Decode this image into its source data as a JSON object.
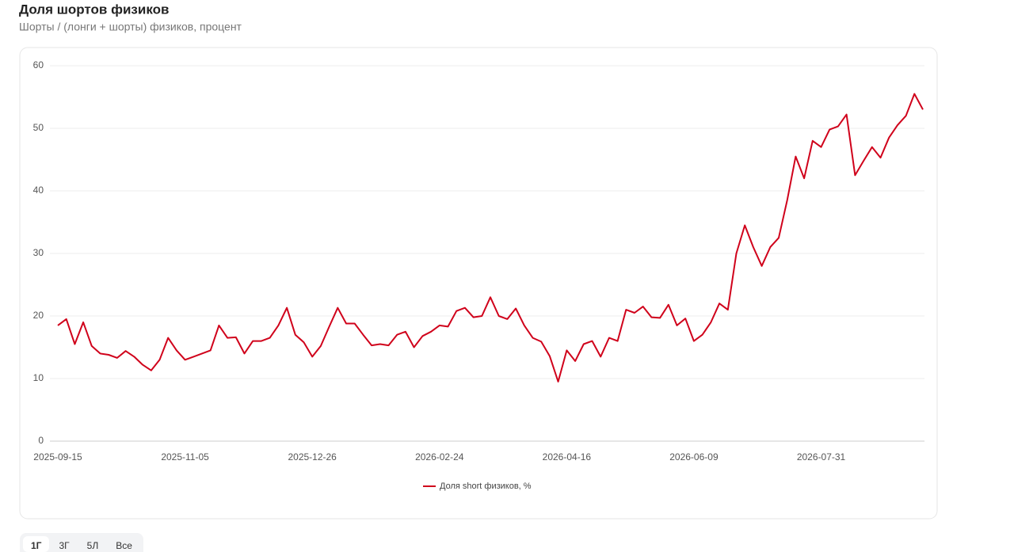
{
  "chart_data": {
    "type": "line",
    "title": "Доля шортов физиков",
    "subtitle": "Шорты / (лонги + шорты) физиков, процент",
    "x": [
      "2025-09-15",
      null,
      null,
      null,
      null,
      null,
      null,
      null,
      null,
      null,
      null,
      null,
      null,
      null,
      null,
      "2025-11-05",
      null,
      null,
      null,
      null,
      null,
      null,
      null,
      null,
      null,
      null,
      null,
      null,
      null,
      null,
      "2025-12-26",
      null,
      null,
      null,
      null,
      null,
      null,
      null,
      null,
      null,
      null,
      null,
      null,
      null,
      null,
      "2026-02-24",
      null,
      null,
      null,
      null,
      null,
      null,
      null,
      null,
      null,
      null,
      null,
      null,
      null,
      null,
      "2026-04-16",
      null,
      null,
      null,
      null,
      null,
      null,
      null,
      null,
      null,
      null,
      null,
      null,
      null,
      null,
      "2026-06-09",
      null,
      null,
      null,
      null,
      null,
      null,
      null,
      null,
      null,
      null,
      null,
      null,
      null,
      null,
      "2026-07-31",
      null,
      null,
      null,
      null,
      null,
      null,
      null,
      null,
      null,
      null,
      null,
      null
    ],
    "series": [
      {
        "name": "Доля short физиков, %",
        "color": "#d0021b",
        "values": [
          18.5,
          19.5,
          15.5,
          19,
          15.2,
          14,
          13.8,
          13.3,
          14.4,
          13.5,
          12.2,
          11.3,
          13,
          16.5,
          14.5,
          13,
          13.5,
          14,
          14.5,
          18.5,
          16.5,
          16.6,
          14,
          16,
          16,
          16.5,
          18.5,
          21.3,
          17,
          15.8,
          13.5,
          15.2,
          18.3,
          21.3,
          18.8,
          18.8,
          17,
          15.3,
          15.5,
          15.3,
          17,
          17.5,
          15,
          16.8,
          17.5,
          18.5,
          18.3,
          20.8,
          21.3,
          19.8,
          20,
          23,
          20,
          19.5,
          21.2,
          18.5,
          16.5,
          15.9,
          13.6,
          9.5,
          14.5,
          12.8,
          15.5,
          16,
          13.5,
          16.5,
          16,
          21,
          20.5,
          21.5,
          19.8,
          19.7,
          21.8,
          18.5,
          19.6,
          16,
          17,
          19,
          22,
          21,
          30,
          34.5,
          31,
          28,
          31,
          32.5,
          38.5,
          45.5,
          42,
          48,
          47,
          49.8,
          50.3,
          52.2,
          42.5,
          44.8,
          47,
          45.3,
          48.5,
          50.5,
          52,
          55.5,
          53
        ]
      }
    ],
    "ylim": [
      0,
      60
    ],
    "yticks": [
      0,
      10,
      20,
      30,
      40,
      50,
      60
    ],
    "grid": true,
    "legend": "bottom"
  },
  "ui": {
    "range_buttons": [
      "1Г",
      "3Г",
      "5Л",
      "Все"
    ],
    "active": 0
  }
}
